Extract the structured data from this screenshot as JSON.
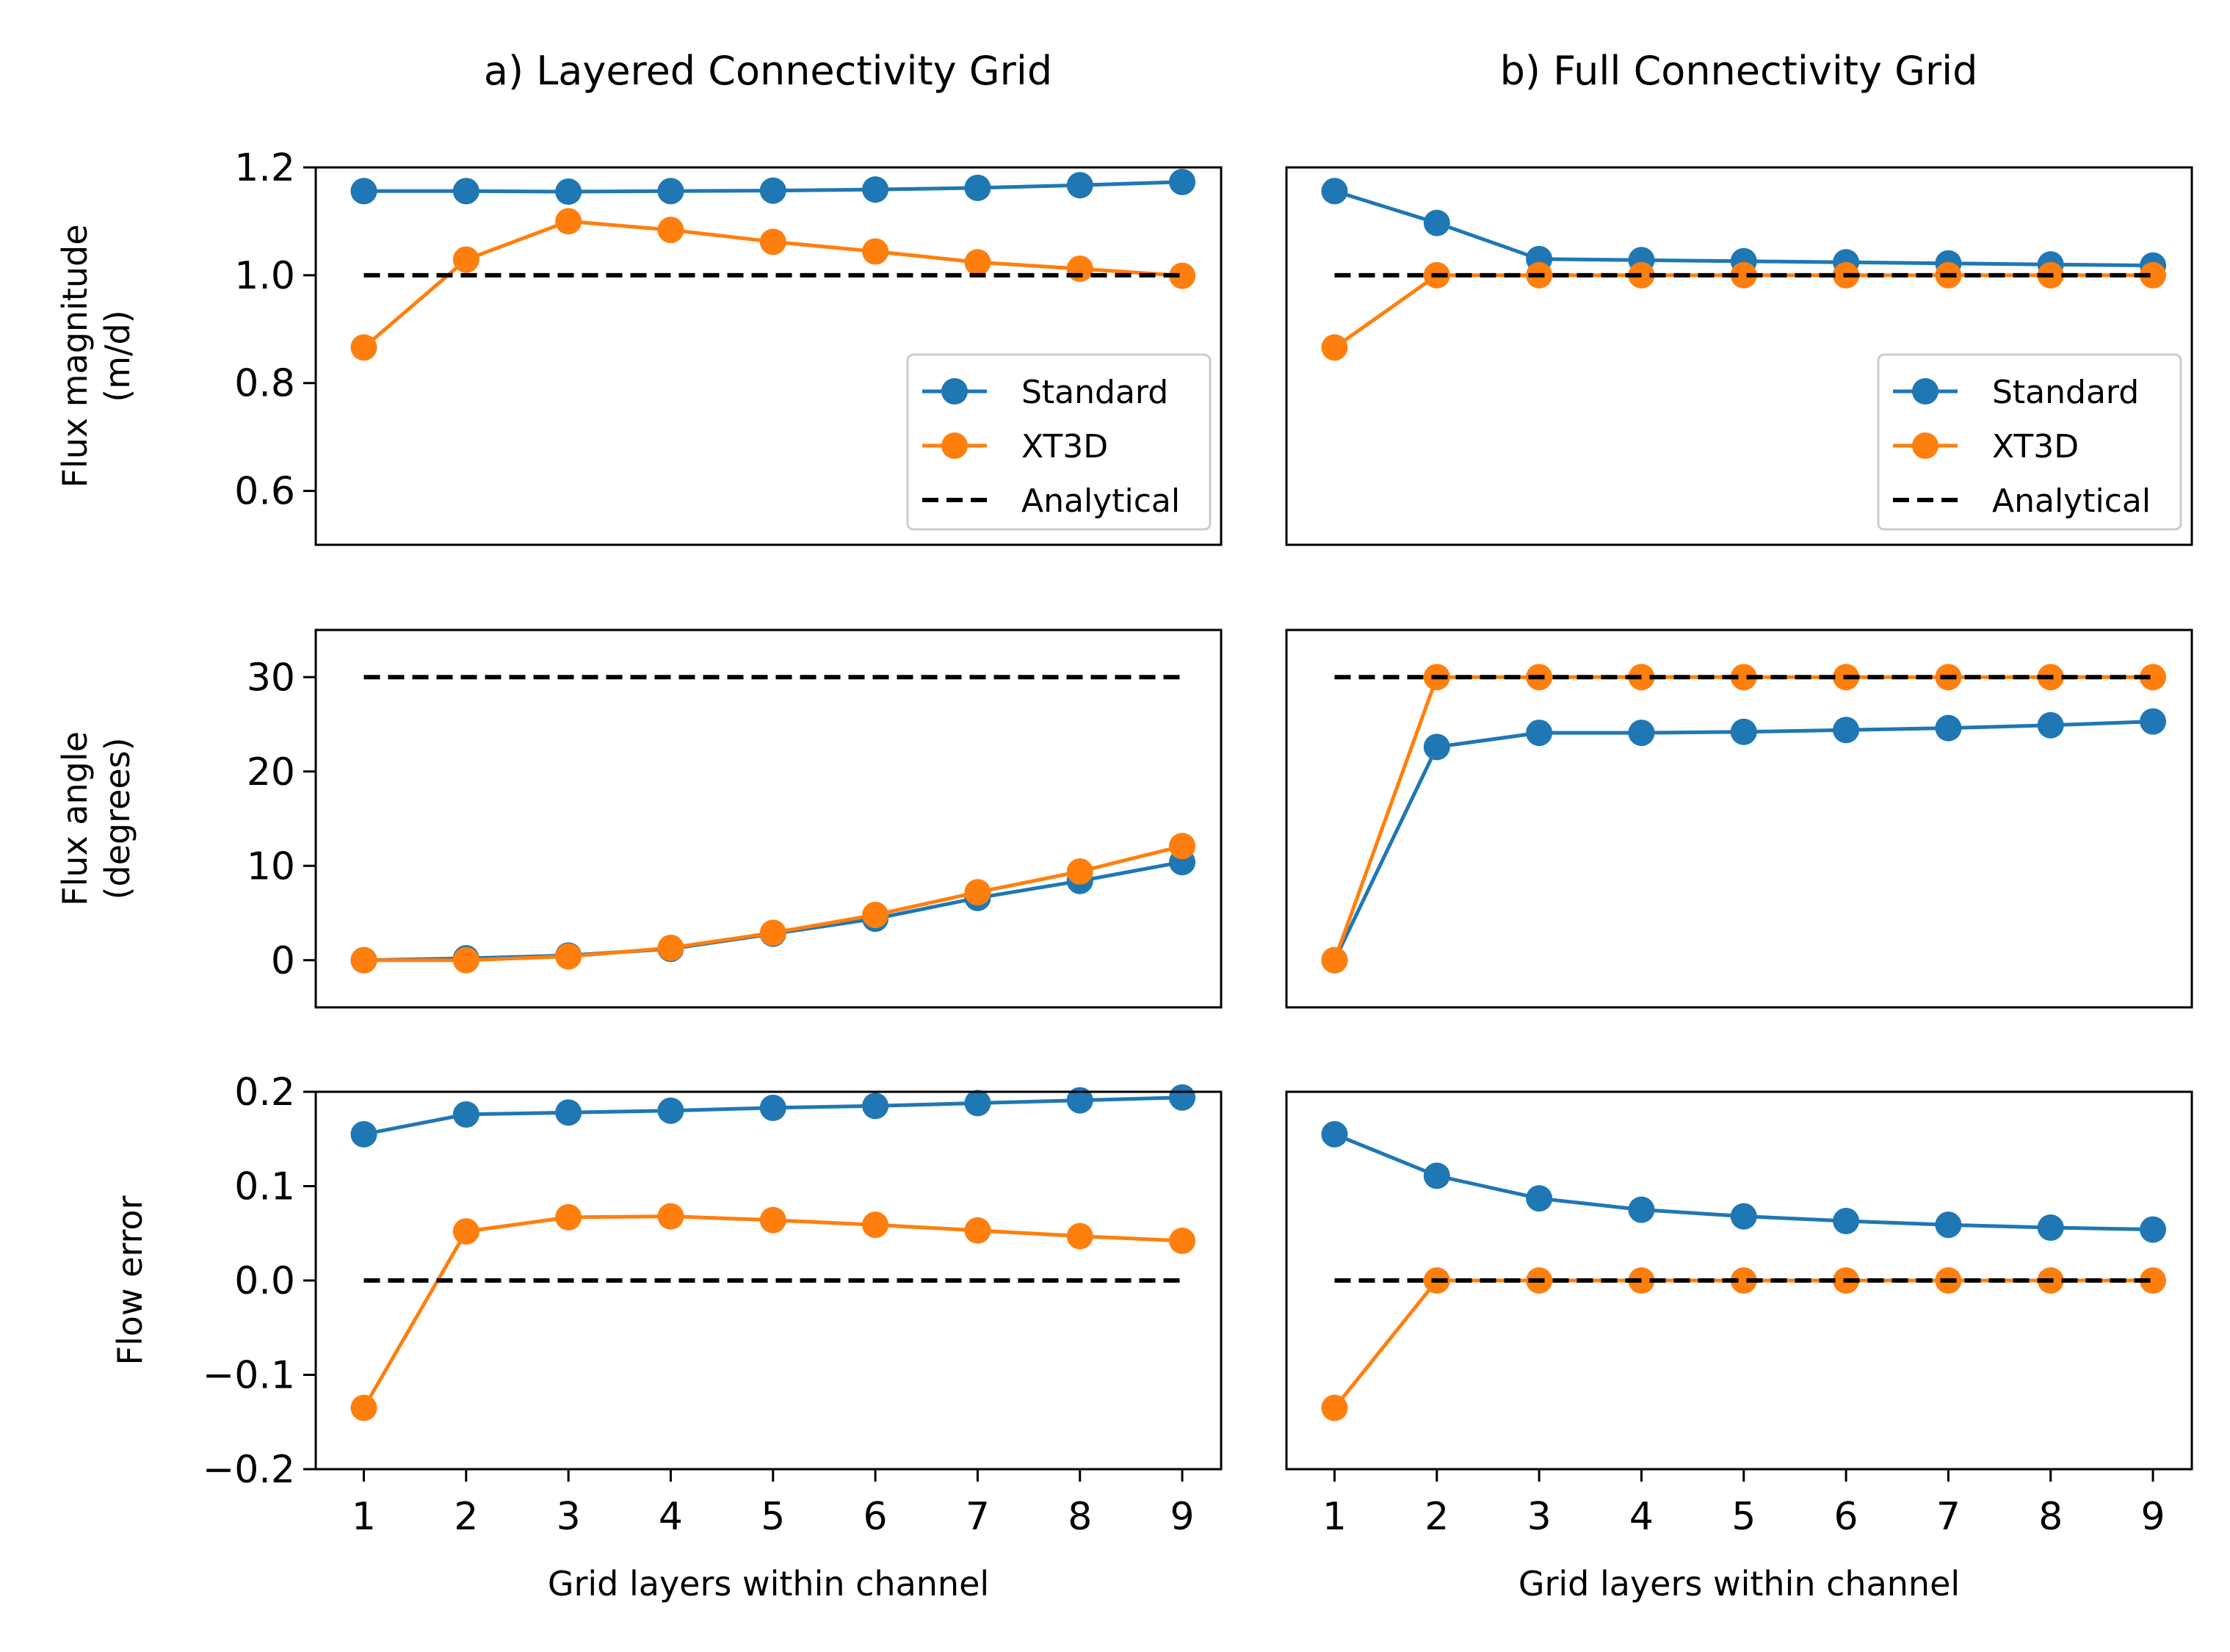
{
  "column_titles": [
    "a) Layered Connectivity Grid",
    "b) Full Connectivity Grid"
  ],
  "colors": {
    "standard": "#1f77b4",
    "xt3d": "#ff7f0e",
    "analytical": "#000000"
  },
  "chart_data": [
    {
      "type": "line",
      "panel": "a-magnitude",
      "title": "",
      "xlabel": "",
      "ylabel": [
        "Flux magnitude",
        "(m/d)"
      ],
      "x": [
        1,
        2,
        3,
        4,
        5,
        6,
        7,
        8,
        9
      ],
      "xlim": [
        0.53,
        9.38
      ],
      "ylim": [
        0.5,
        1.2
      ],
      "yticks": [
        0.6,
        0.8,
        1.0,
        1.2
      ],
      "ytick_labels": [
        "0.6",
        "0.8",
        "1.0",
        "1.2"
      ],
      "xticks": [],
      "xtick_labels": [],
      "legend": {
        "placement": "lower-right",
        "entries": [
          "Standard",
          "XT3D",
          "Analytical"
        ]
      },
      "series": [
        {
          "name": "Standard",
          "values": [
            1.156,
            1.156,
            1.155,
            1.156,
            1.157,
            1.159,
            1.162,
            1.167,
            1.173
          ]
        },
        {
          "name": "XT3D",
          "values": [
            0.866,
            1.029,
            1.1,
            1.084,
            1.062,
            1.044,
            1.024,
            1.012,
            0.999
          ]
        },
        {
          "name": "Analytical",
          "values": [
            1.0,
            1.0,
            1.0,
            1.0,
            1.0,
            1.0,
            1.0,
            1.0,
            1.0
          ]
        }
      ]
    },
    {
      "type": "line",
      "panel": "b-magnitude",
      "title": "",
      "xlabel": "",
      "ylabel": "",
      "x": [
        1,
        2,
        3,
        4,
        5,
        6,
        7,
        8,
        9
      ],
      "xlim": [
        0.53,
        9.38
      ],
      "ylim": [
        0.5,
        1.2
      ],
      "yticks": [],
      "ytick_labels": [],
      "xticks": [],
      "xtick_labels": [],
      "legend": {
        "placement": "lower-right",
        "entries": [
          "Standard",
          "XT3D",
          "Analytical"
        ]
      },
      "series": [
        {
          "name": "Standard",
          "values": [
            1.156,
            1.097,
            1.03,
            1.028,
            1.026,
            1.024,
            1.022,
            1.02,
            1.018
          ]
        },
        {
          "name": "XT3D",
          "values": [
            0.866,
            1.0,
            1.0,
            1.0,
            1.0,
            1.0,
            1.0,
            1.0,
            1.0
          ]
        },
        {
          "name": "Analytical",
          "values": [
            1.0,
            1.0,
            1.0,
            1.0,
            1.0,
            1.0,
            1.0,
            1.0,
            1.0
          ]
        }
      ]
    },
    {
      "type": "line",
      "panel": "a-angle",
      "title": "",
      "xlabel": "",
      "ylabel": [
        "Flux angle",
        "(degrees)"
      ],
      "x": [
        1,
        2,
        3,
        4,
        5,
        6,
        7,
        8,
        9
      ],
      "xlim": [
        0.53,
        9.38
      ],
      "ylim": [
        -5,
        35
      ],
      "yticks": [
        0,
        10,
        20,
        30
      ],
      "ytick_labels": [
        "0",
        "10",
        "20",
        "30"
      ],
      "xticks": [],
      "xtick_labels": [],
      "series": [
        {
          "name": "Standard",
          "values": [
            0.0,
            0.2,
            0.5,
            1.2,
            2.8,
            4.4,
            6.6,
            8.4,
            10.4
          ]
        },
        {
          "name": "XT3D",
          "values": [
            0.0,
            0.0,
            0.4,
            1.3,
            2.9,
            4.8,
            7.2,
            9.4,
            12.1
          ]
        },
        {
          "name": "Analytical",
          "values": [
            30,
            30,
            30,
            30,
            30,
            30,
            30,
            30,
            30
          ]
        }
      ]
    },
    {
      "type": "line",
      "panel": "b-angle",
      "title": "",
      "xlabel": "",
      "ylabel": "",
      "x": [
        1,
        2,
        3,
        4,
        5,
        6,
        7,
        8,
        9
      ],
      "xlim": [
        0.53,
        9.38
      ],
      "ylim": [
        -5,
        35
      ],
      "yticks": [],
      "ytick_labels": [],
      "xticks": [],
      "xtick_labels": [],
      "series": [
        {
          "name": "Standard",
          "values": [
            0.0,
            22.6,
            24.1,
            24.1,
            24.2,
            24.4,
            24.6,
            24.9,
            25.3
          ]
        },
        {
          "name": "XT3D",
          "values": [
            0.0,
            30,
            30,
            30,
            30,
            30,
            30,
            30,
            30
          ]
        },
        {
          "name": "Analytical",
          "values": [
            30,
            30,
            30,
            30,
            30,
            30,
            30,
            30,
            30
          ]
        }
      ]
    },
    {
      "type": "line",
      "panel": "a-error",
      "title": "",
      "xlabel": "Grid layers within channel",
      "ylabel": "Flow error",
      "x": [
        1,
        2,
        3,
        4,
        5,
        6,
        7,
        8,
        9
      ],
      "xlim": [
        0.53,
        9.38
      ],
      "ylim": [
        -0.2,
        0.2
      ],
      "yticks": [
        -0.2,
        -0.1,
        0.0,
        0.1,
        0.2
      ],
      "ytick_labels": [
        "−0.2",
        "−0.1",
        "0.0",
        "0.1",
        "0.2"
      ],
      "xticks": [
        1,
        2,
        3,
        4,
        5,
        6,
        7,
        8,
        9
      ],
      "xtick_labels": [
        "1",
        "2",
        "3",
        "4",
        "5",
        "6",
        "7",
        "8",
        "9"
      ],
      "series": [
        {
          "name": "Standard",
          "values": [
            0.155,
            0.176,
            0.178,
            0.18,
            0.183,
            0.185,
            0.188,
            0.191,
            0.194
          ]
        },
        {
          "name": "XT3D",
          "values": [
            -0.135,
            0.052,
            0.067,
            0.068,
            0.064,
            0.059,
            0.053,
            0.047,
            0.042
          ]
        },
        {
          "name": "Analytical",
          "values": [
            0,
            0,
            0,
            0,
            0,
            0,
            0,
            0,
            0
          ]
        }
      ]
    },
    {
      "type": "line",
      "panel": "b-error",
      "title": "",
      "xlabel": "Grid layers within channel",
      "ylabel": "",
      "x": [
        1,
        2,
        3,
        4,
        5,
        6,
        7,
        8,
        9
      ],
      "xlim": [
        0.53,
        9.38
      ],
      "ylim": [
        -0.2,
        0.2
      ],
      "yticks": [],
      "ytick_labels": [],
      "xticks": [
        1,
        2,
        3,
        4,
        5,
        6,
        7,
        8,
        9
      ],
      "xtick_labels": [
        "1",
        "2",
        "3",
        "4",
        "5",
        "6",
        "7",
        "8",
        "9"
      ],
      "series": [
        {
          "name": "Standard",
          "values": [
            0.155,
            0.111,
            0.087,
            0.075,
            0.068,
            0.063,
            0.059,
            0.056,
            0.054
          ]
        },
        {
          "name": "XT3D",
          "values": [
            -0.135,
            0,
            0,
            0,
            0,
            0,
            0,
            0,
            0
          ]
        },
        {
          "name": "Analytical",
          "values": [
            0,
            0,
            0,
            0,
            0,
            0,
            0,
            0,
            0
          ]
        }
      ]
    }
  ]
}
